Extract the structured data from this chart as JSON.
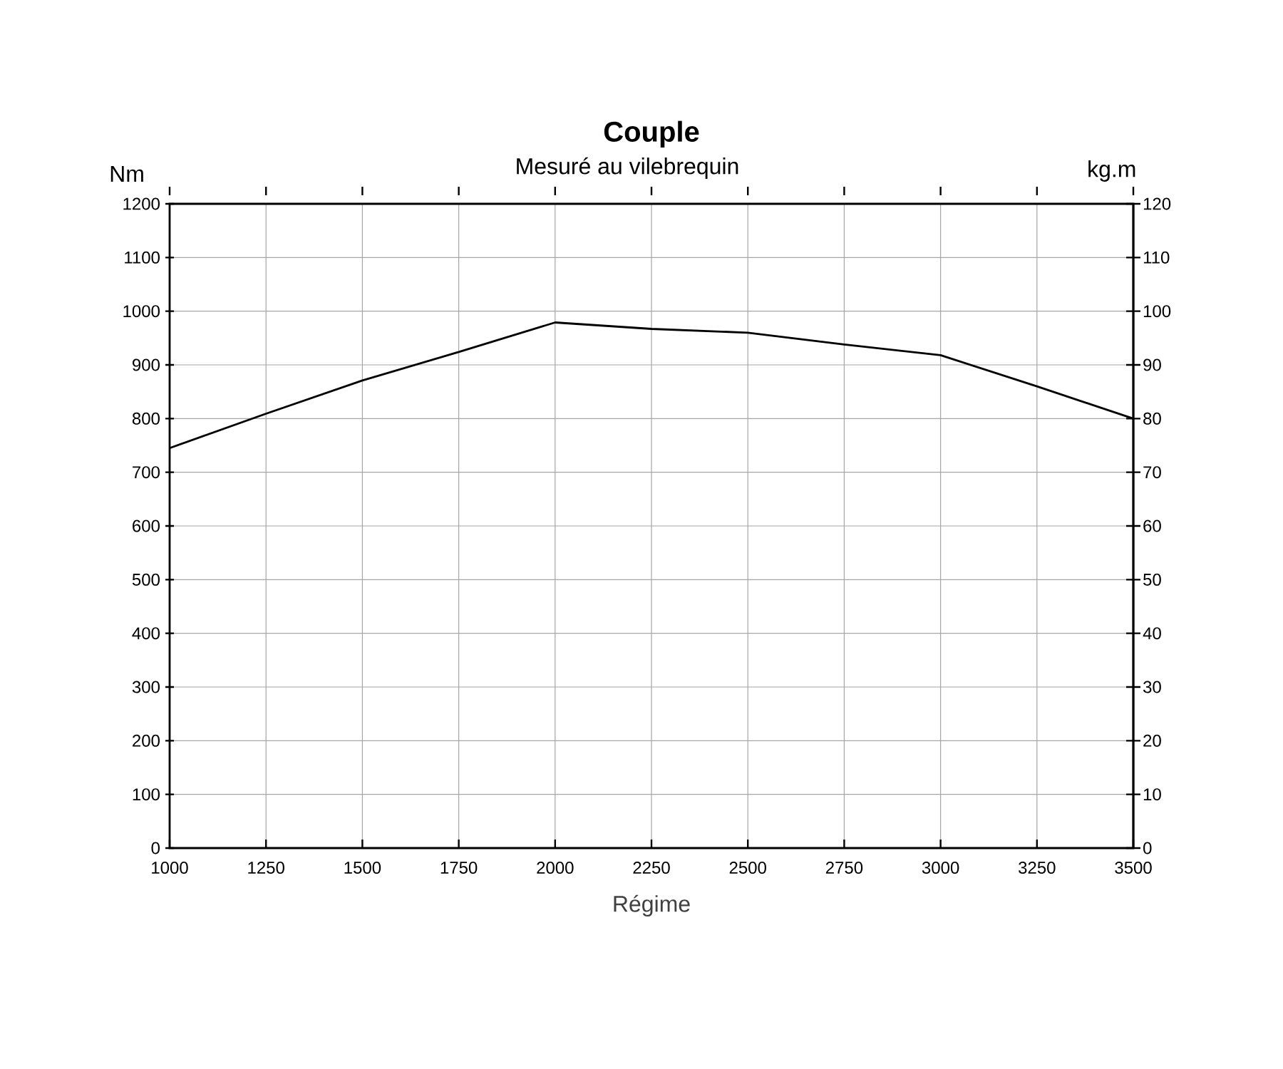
{
  "chart_data": {
    "type": "line",
    "title": "Couple",
    "subtitle": "Mesuré au vilebrequin",
    "xlabel": "Régime",
    "ylabel": "Nm",
    "y2label": "kg.m",
    "x": [
      1000,
      1250,
      1500,
      1750,
      2000,
      2250,
      2500,
      2750,
      3000,
      3250,
      3500
    ],
    "series": [
      {
        "color": "#000000",
        "values": [
          745,
          809,
          871,
          924,
          979,
          967,
          960,
          938,
          918,
          860,
          800
        ]
      }
    ],
    "xlim": [
      1000,
      3500
    ],
    "xticks": [
      1000,
      1250,
      1500,
      1750,
      2000,
      2250,
      2500,
      2750,
      3000,
      3250,
      3500
    ],
    "ylim": [
      0,
      1200
    ],
    "yticks": [
      0,
      100,
      200,
      300,
      400,
      500,
      600,
      700,
      800,
      900,
      1000,
      1100,
      1200
    ],
    "y2lim": [
      0,
      120
    ],
    "y2ticks": [
      0,
      10,
      20,
      30,
      40,
      50,
      60,
      70,
      80,
      90,
      100,
      110,
      120
    ],
    "grid": true,
    "marker": "none",
    "line_style": "solid"
  }
}
